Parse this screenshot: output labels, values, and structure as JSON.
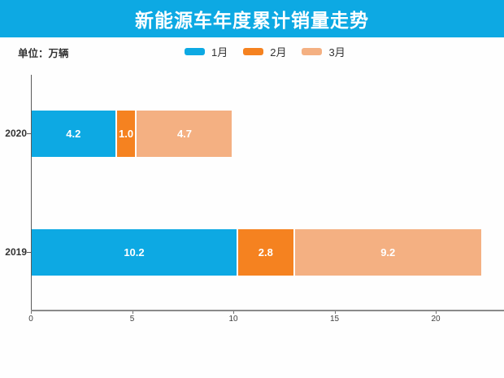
{
  "title": "新能源车年度累计销量走势",
  "unit_label": "单位：万辆",
  "colors": {
    "title_bar": "#0da9e3",
    "jan": "#0da9e3",
    "feb": "#f58220",
    "mar": "#f4b082",
    "axis_x": "#8a8a8a",
    "axis_y": "#5a5a5a",
    "value_text": "#ffffff",
    "label_text": "#333333"
  },
  "legend": [
    {
      "label": "1月",
      "color": "#0da9e3"
    },
    {
      "label": "2月",
      "color": "#f58220"
    },
    {
      "label": "3月",
      "color": "#f4b082"
    }
  ],
  "chart_data": {
    "type": "bar",
    "orientation": "horizontal",
    "stacked": true,
    "title": "新能源车年度累计销量走势",
    "unit": "万辆",
    "categories": [
      "2020",
      "2019"
    ],
    "series": [
      {
        "name": "1月",
        "color": "#0da9e3",
        "values": [
          4.2,
          10.2
        ],
        "labels": [
          "4.2",
          "10.2"
        ]
      },
      {
        "name": "2月",
        "color": "#f58220",
        "values": [
          1.0,
          2.8
        ],
        "labels": [
          "1.0",
          "2.8"
        ]
      },
      {
        "name": "3月",
        "color": "#f4b082",
        "values": [
          4.7,
          9.2
        ],
        "labels": [
          "4.7",
          "9.2"
        ]
      }
    ],
    "totals": [
      9.9,
      22.2
    ],
    "xlim": [
      0,
      23.4
    ],
    "xticks": [
      0,
      5,
      10,
      15,
      20
    ],
    "xtick_labels": [
      "0",
      "5",
      "10",
      "15",
      "20"
    ],
    "grid": false,
    "legend_position": "top-center"
  }
}
